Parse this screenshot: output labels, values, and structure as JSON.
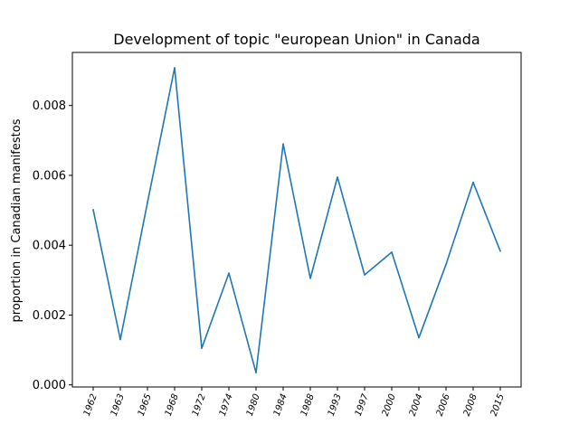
{
  "chart_data": {
    "type": "line",
    "title": "Development of topic \"european Union\" in Canada",
    "xlabel": "",
    "ylabel": "proportion in Canadian manifestos",
    "categories": [
      "1962",
      "1963",
      "1965",
      "1968",
      "1972",
      "1974",
      "1980",
      "1984",
      "1988",
      "1993",
      "1997",
      "2000",
      "2004",
      "2006",
      "2008",
      "2015"
    ],
    "series": [
      {
        "values": [
          0.00502,
          0.0013,
          0.00522,
          0.00908,
          0.00105,
          0.0032,
          0.00035,
          0.0069,
          0.00305,
          0.00595,
          0.00315,
          0.0038,
          0.00135,
          0.00345,
          0.0058,
          0.00383
        ],
        "color": "#1f77b4"
      }
    ],
    "ylim": [
      -6e-05,
      0.00952
    ],
    "yticks": [
      "0.000",
      "0.002",
      "0.004",
      "0.006",
      "0.008"
    ],
    "grid": false,
    "legend": "none"
  }
}
